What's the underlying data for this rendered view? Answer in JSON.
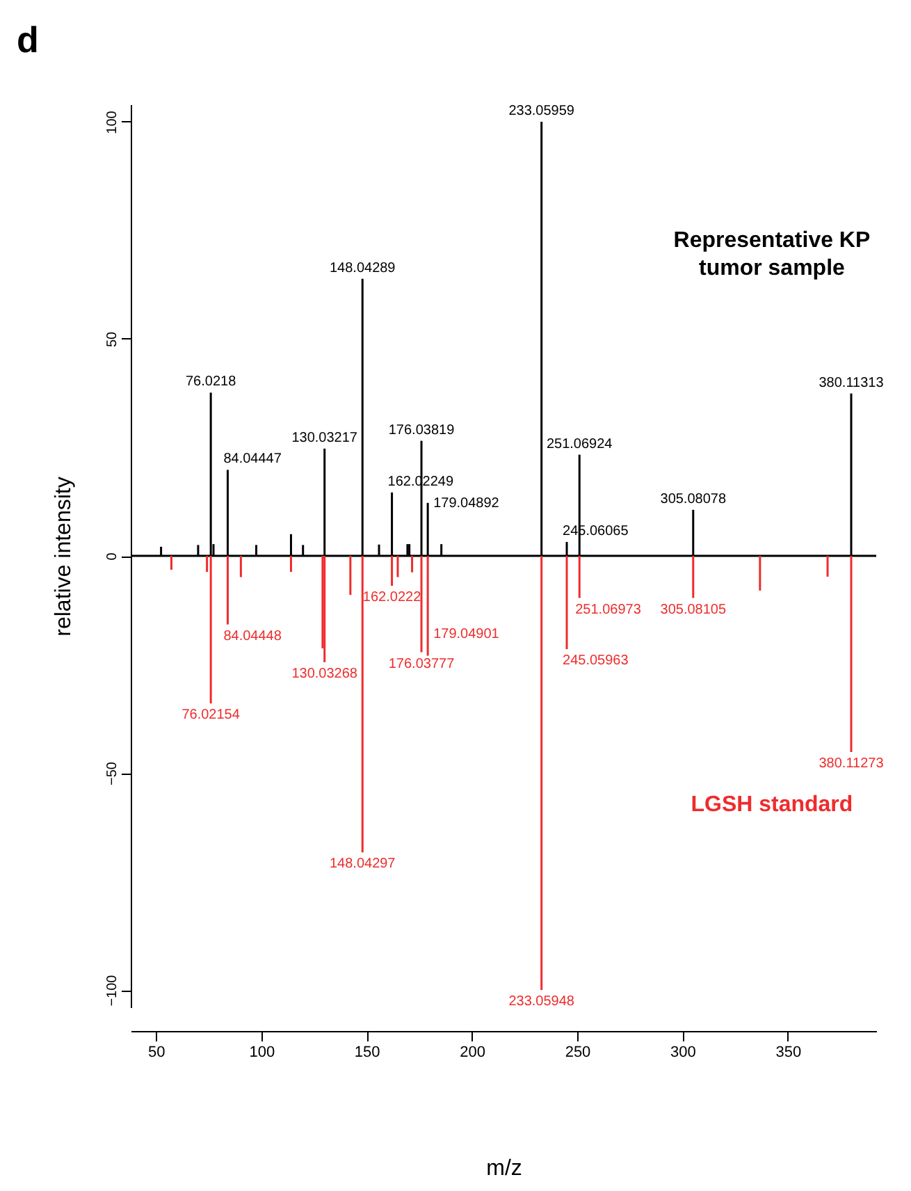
{
  "chart_data": {
    "type": "bar",
    "title": "d",
    "xlabel": "m/z",
    "ylabel": "relative intensity",
    "xlim": [
      38,
      392
    ],
    "xticks": [
      50,
      100,
      150,
      200,
      250,
      300,
      350
    ],
    "ylim": [
      -104,
      104
    ],
    "yticks": [
      -100,
      -50,
      0,
      50,
      100
    ],
    "ref_lines": [
      {
        "axis": "y",
        "value": 0,
        "color": "#000000"
      }
    ],
    "series": [
      {
        "name": "Representative KP tumor sample",
        "color": "#000000",
        "x": [
          52.4,
          70,
          76.0218,
          77.3,
          84.04447,
          97.6,
          114.1,
          119.8,
          130.03217,
          148.04289,
          155.9,
          162.02249,
          169.4,
          170.3,
          176.03819,
          179.04892,
          185.5,
          233.05959,
          245.06065,
          251.06924,
          305.08078,
          380.11313
        ],
        "values": [
          2.1,
          2.5,
          37.6,
          2.7,
          19.8,
          2.5,
          5,
          2.5,
          24.7,
          63.8,
          2.6,
          14.6,
          2.7,
          2.7,
          26.5,
          12.2,
          2.7,
          100,
          3.2,
          23.3,
          10.6,
          37.4
        ]
      },
      {
        "name": "LGSH standard",
        "color": "#ee2c2c",
        "x": [
          57.3,
          74.2,
          76.02154,
          84.04448,
          90.3,
          114.1,
          129.1,
          130.03268,
          142.3,
          148.04297,
          162.0222,
          164.8,
          171.6,
          176.03777,
          179.04901,
          233.05948,
          245.05963,
          251.06973,
          305.08105,
          336.8,
          368.9,
          380.11273
        ],
        "values": [
          -3.2,
          -3.7,
          -34,
          -15.8,
          -4.9,
          -3.7,
          -21.3,
          -24.5,
          -9,
          -68.3,
          -6.9,
          -4.9,
          -3.8,
          -22.2,
          -23,
          -100,
          -21.5,
          -9.7,
          -9.7,
          -8,
          -4.8,
          -45.2
        ]
      }
    ],
    "annotations": [
      {
        "text": "76.0218",
        "x": 76.0218,
        "y": 37.6
      },
      {
        "text": "84.04447",
        "x": 84.04447,
        "y": 19.8
      },
      {
        "text": "130.03217",
        "x": 130.03217,
        "y": 24.7
      },
      {
        "text": "148.04289",
        "x": 148.04289,
        "y": 63.8
      },
      {
        "text": "162.02249",
        "x": 162.02249,
        "y": 14.6
      },
      {
        "text": "176.03819",
        "x": 176.03819,
        "y": 26.5
      },
      {
        "text": "179.04892",
        "x": 179.04892,
        "y": 12.2
      },
      {
        "text": "233.05959",
        "x": 233.05959,
        "y": 100
      },
      {
        "text": "245.06065",
        "x": 245.06065,
        "y": 3.2
      },
      {
        "text": "251.06924",
        "x": 251.06924,
        "y": 23.3
      },
      {
        "text": "305.08078",
        "x": 305.08078,
        "y": 10.6
      },
      {
        "text": "380.11313",
        "x": 380.11313,
        "y": 37.4
      },
      {
        "text": "76.02154",
        "x": 76.02154,
        "y": -34
      },
      {
        "text": "84.04448",
        "x": 84.04448,
        "y": -15.8
      },
      {
        "text": "130.03268",
        "x": 130.03268,
        "y": -24.5
      },
      {
        "text": "148.04297",
        "x": 148.04297,
        "y": -68.3
      },
      {
        "text": "162.0222",
        "x": 162.0222,
        "y": -6.9
      },
      {
        "text": "176.03777",
        "x": 176.03777,
        "y": -22.2
      },
      {
        "text": "179.04901",
        "x": 179.04901,
        "y": -23
      },
      {
        "text": "233.05948",
        "x": 233.05948,
        "y": -100
      },
      {
        "text": "245.05963",
        "x": 245.05963,
        "y": -21.5
      },
      {
        "text": "251.06973",
        "x": 251.06973,
        "y": -9.7
      },
      {
        "text": "305.08105",
        "x": 305.08105,
        "y": -9.7
      },
      {
        "text": "380.11273",
        "x": 380.11273,
        "y": -45.2
      }
    ]
  }
}
